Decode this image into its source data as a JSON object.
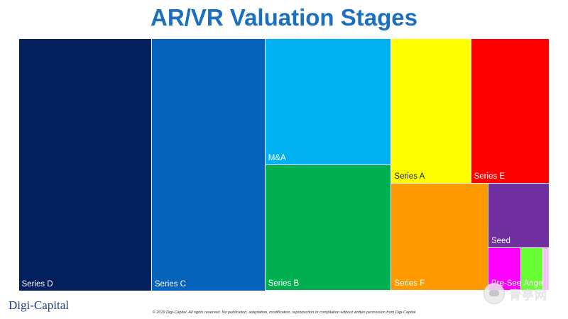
{
  "page": {
    "title": "AR/VR Valuation Stages",
    "brand": "Digi-Capital",
    "copyright": "© 2019 Digi-Capital. All rights reserved. No publication, adaptation, modification, reproduction or compilation without written permission from Digi-Capital",
    "watermark_text": "青亭网"
  },
  "chart_data": {
    "type": "treemap",
    "title": "AR/VR Valuation Stages",
    "items": [
      {
        "label": "Series D",
        "value": 48.3,
        "color": "#031f5d",
        "label_color": "#ffffff"
      },
      {
        "label": "Series C",
        "value": 41.2,
        "color": "#0563bb",
        "label_color": "#ffffff"
      },
      {
        "label": "M&A",
        "value": 23.0,
        "color": "#00b0f0",
        "label_color": "#ffffff"
      },
      {
        "label": "Series B",
        "value": 22.8,
        "color": "#00b050",
        "label_color": "#ffffff"
      },
      {
        "label": "Series A",
        "value": 16.6,
        "color": "#ffff00",
        "label_color": "#222222"
      },
      {
        "label": "Series E",
        "value": 16.4,
        "color": "#ff0000",
        "label_color": "#ffffff"
      },
      {
        "label": "Series F",
        "value": 15.0,
        "color": "#ff9900",
        "label_color": "#ffffff"
      },
      {
        "label": "Seed",
        "value": 5.7,
        "color": "#7030a0",
        "label_color": "#ffffff"
      },
      {
        "label": "Pre-Seed",
        "value": 2.0,
        "color": "#ff00ff",
        "label_color": "#ffffff"
      },
      {
        "label": "Angel",
        "value": 1.4,
        "color": "#66ff33",
        "label_color": "#ffffff"
      },
      {
        "label": "",
        "value": 0.4,
        "color": "#f2c6f2",
        "label_color": "#ffffff"
      }
    ]
  }
}
